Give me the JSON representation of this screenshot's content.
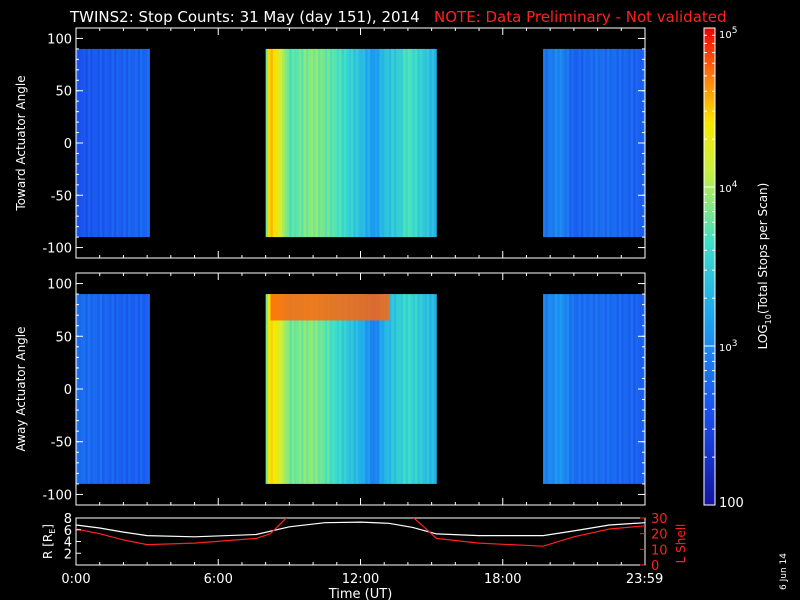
{
  "header": {
    "title": "TWINS2: Stop Counts: 31 May (day 151), 2014",
    "note": "NOTE: Data Preliminary - Not validated",
    "note_color": "#ff2020"
  },
  "side_label": "6 Jun 14",
  "chart_data": [
    {
      "type": "heatmap",
      "ylabel": "Toward Actuator Angle",
      "xlim": [
        0,
        24
      ],
      "ylim": [
        -110,
        110
      ],
      "yticks": [
        100,
        50,
        0,
        -50,
        -100
      ],
      "angle_range": [
        -90,
        90
      ],
      "coverage_hours": [
        [
          0,
          3.1
        ],
        [
          8.0,
          15.2
        ],
        [
          19.7,
          24
        ]
      ],
      "profile_hours": [
        0,
        1,
        2,
        3,
        7.9,
        8.2,
        8.6,
        9,
        10,
        11,
        12,
        12.6,
        13,
        13.6,
        14,
        15.2,
        19.7,
        20.4,
        21,
        22,
        23,
        24
      ],
      "profile_log10_counts": [
        2.6,
        2.65,
        2.7,
        2.75,
        3.3,
        4.6,
        4.2,
        3.7,
        3.9,
        3.7,
        3.4,
        3.1,
        3.4,
        3.5,
        3.7,
        3.3,
        2.8,
        3.0,
        2.7,
        2.8,
        2.75,
        2.7
      ]
    },
    {
      "type": "heatmap",
      "ylabel": "Away Actuator Angle",
      "xlim": [
        0,
        24
      ],
      "ylim": [
        -110,
        110
      ],
      "yticks": [
        100,
        50,
        0,
        -50,
        -100
      ],
      "angle_range": [
        -90,
        90
      ],
      "coverage_hours": [
        [
          0,
          3.1
        ],
        [
          8.0,
          15.2
        ],
        [
          19.7,
          24
        ]
      ],
      "profile_hours": [
        0,
        1,
        2,
        3,
        7.9,
        8.2,
        8.6,
        9,
        10,
        11,
        12,
        12.6,
        13,
        13.6,
        14,
        15.2,
        19.7,
        20.4,
        21,
        22,
        23,
        24
      ],
      "profile_log10_counts": [
        2.8,
        2.75,
        2.7,
        2.7,
        3.4,
        4.5,
        4.2,
        3.8,
        3.9,
        3.6,
        3.3,
        2.9,
        3.3,
        3.5,
        3.6,
        3.3,
        2.9,
        3.1,
        2.8,
        2.8,
        2.75,
        2.7
      ],
      "hot_band": {
        "hours": [
          8.2,
          13.2
        ],
        "angle": [
          65,
          90
        ],
        "log10_counts": 4.75
      }
    },
    {
      "type": "line",
      "ylabel": "R [R",
      "ylabel_sub": "E",
      "ylabel_end": "]",
      "y2label": "L Shell",
      "xlabel": "Time (UT)",
      "xlim": [
        0,
        24
      ],
      "xticks": [
        0,
        6,
        12,
        18,
        23.983
      ],
      "xticklabels": [
        "0:00",
        "6:00",
        "12:00",
        "18:00",
        "23:59"
      ],
      "ylim": [
        0,
        8
      ],
      "yticks": [
        8,
        6,
        4,
        2
      ],
      "y2lim": [
        0,
        30
      ],
      "y2ticks": [
        30,
        20,
        10,
        0
      ],
      "series": [
        {
          "color": "#ffffff",
          "axis": "left",
          "x": [
            0,
            1,
            2,
            3,
            5,
            7.6,
            9,
            10.5,
            12,
            13.2,
            14.2,
            15.2,
            17,
            19.7,
            21,
            22.5,
            24
          ],
          "values": [
            6.8,
            6.3,
            5.6,
            5.0,
            4.8,
            5.2,
            6.5,
            7.2,
            7.3,
            7.1,
            6.4,
            5.3,
            5.0,
            5.0,
            5.8,
            6.8,
            7.2
          ]
        },
        {
          "color": "#ff2020",
          "axis": "right",
          "x": [
            0,
            1,
            2,
            3,
            5,
            7.6,
            8.2,
            9.0,
            14.1,
            14.7,
            15.2,
            17,
            19.7,
            21,
            22.5,
            24
          ],
          "values": [
            23,
            20,
            16,
            13,
            14,
            17,
            20,
            32,
            32,
            24,
            17,
            14,
            12,
            18,
            23,
            25
          ]
        }
      ]
    }
  ],
  "colorbar": {
    "label_prefix": "LOG",
    "label_sub": "10",
    "label_rest": "(Total Stops per Scan)",
    "log10_range": [
      2,
      5
    ],
    "ticks": [
      {
        "log10": 5,
        "base": "10",
        "exp": "5"
      },
      {
        "log10": 4,
        "base": "10",
        "exp": "4"
      },
      {
        "log10": 3,
        "base": "10",
        "exp": "3"
      },
      {
        "log10": 2,
        "base": "100",
        "exp": ""
      }
    ]
  }
}
